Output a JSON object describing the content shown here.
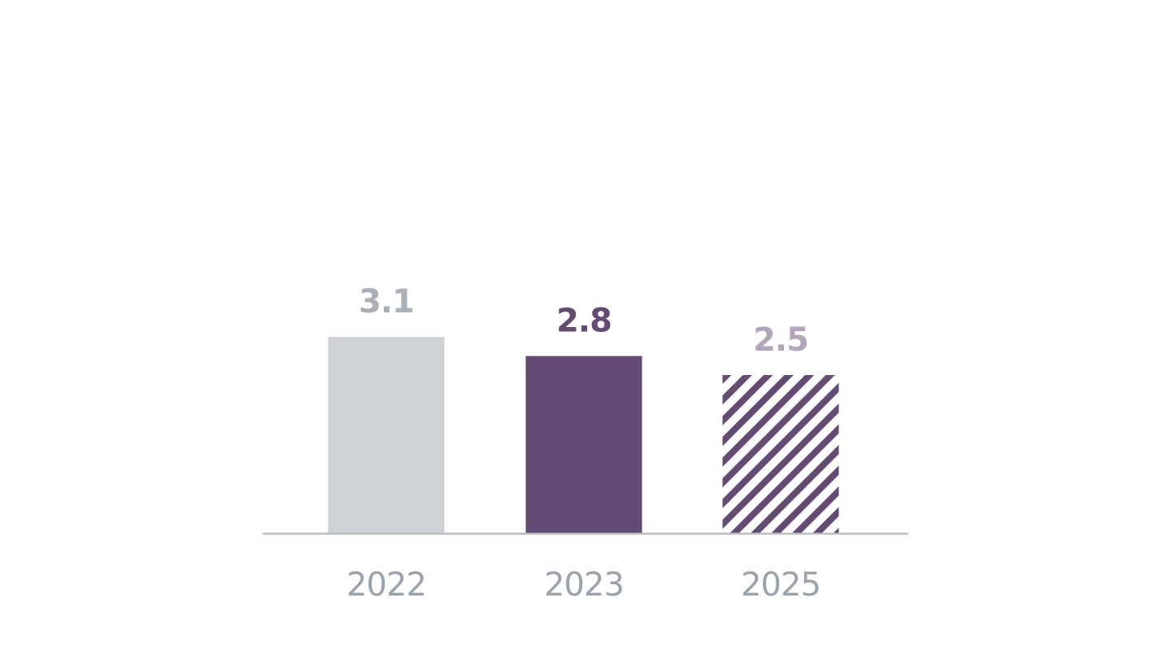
{
  "chart_data": {
    "type": "bar",
    "categories": [
      "2022",
      "2023",
      "2025"
    ],
    "values": [
      3.1,
      2.8,
      2.5
    ],
    "value_labels": [
      "3.1",
      "2.8",
      "2.5"
    ],
    "title": "",
    "xlabel": "",
    "ylabel": "",
    "ylim": [
      0,
      4
    ],
    "grid": false,
    "legend": "none",
    "bar_styles": [
      {
        "fill": "solid",
        "color": "#cdd2d7",
        "label_color": "#a9b0b7"
      },
      {
        "fill": "solid",
        "color": "#644b73",
        "label_color": "#644b73"
      },
      {
        "fill": "hatched",
        "color": "#644b73",
        "label_color": "#b4a5bc"
      }
    ],
    "colors": {
      "axis": "#b9bcc2",
      "tick_label": "#9aa2ab",
      "background": "#ffffff"
    }
  }
}
